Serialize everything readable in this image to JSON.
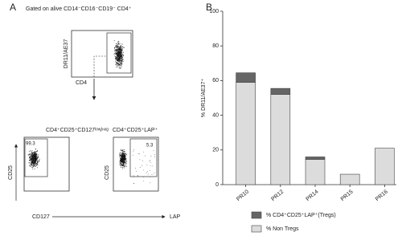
{
  "panel_a": {
    "label": "A",
    "gating": "Gated on alive CD14⁻CD16⁻CD19⁻ CD4⁺",
    "top_plot": {
      "y_label": "DR11/AE37",
      "x_label": "CD4"
    },
    "left_plot": {
      "title": "CD4⁺CD25⁺CD127ˡᵒʷ/ⁿᵉᵍ",
      "gate_value": "99.3",
      "y_label": "CD25",
      "x_label": "CD127"
    },
    "right_plot": {
      "title": "CD4⁺CD25⁺LAP⁺",
      "gate_value": "5.3",
      "y_label": "CD25",
      "x_label": "LAP"
    }
  },
  "chart_data": {
    "type": "stacked_bar",
    "panel_label": "B",
    "y_label": "% DR11/AE37⁺",
    "categories": [
      "PR10",
      "PR12",
      "PR14",
      "PR15",
      "PR16"
    ],
    "series": [
      {
        "name": "% CD4⁺CD25⁺LAP⁺(Tregs)",
        "color": "#666666",
        "values": [
          5.5,
          3.5,
          1.5,
          0,
          0
        ]
      },
      {
        "name": "% Non Tregs",
        "color": "#dcdcdc",
        "values": [
          59,
          52,
          14.5,
          6,
          21
        ]
      }
    ],
    "ylim": [
      0,
      100
    ],
    "yticks": [
      0,
      20,
      40,
      60,
      80,
      100
    ]
  }
}
